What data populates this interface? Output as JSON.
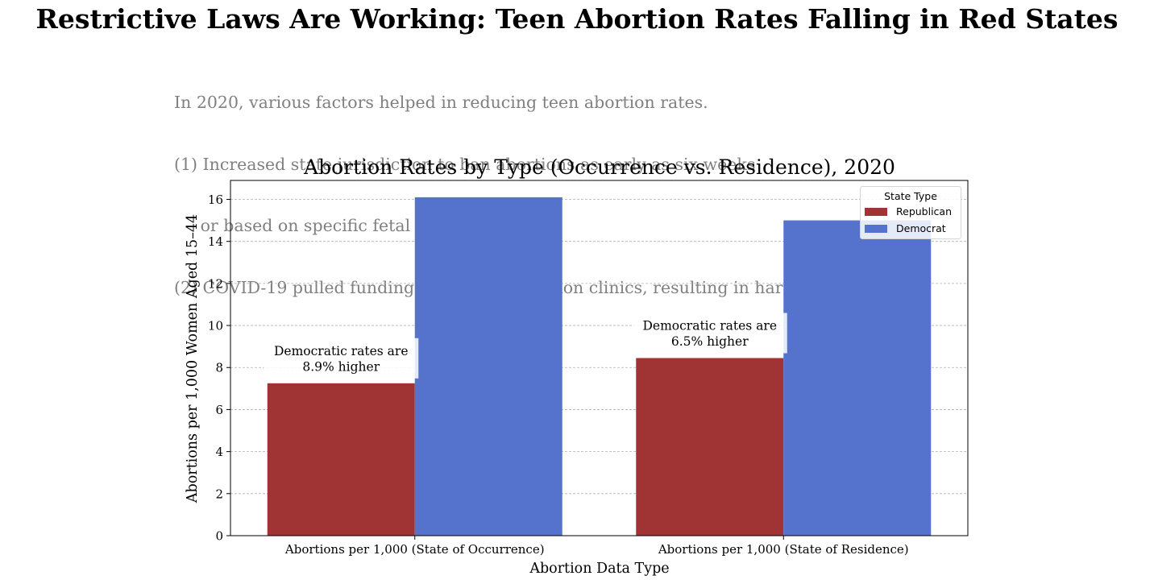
{
  "page": {
    "title": "Restrictive Laws Are Working: Teen Abortion Rates Falling in Red States",
    "subtitle_lines": [
      "In 2020, various factors helped in reducing teen abortion rates.",
      "(1) Increased state jurisdiction to ban abortions as early as six weeks",
      "     or based on specific fetal characteristics",
      "(2) COVID-19 pulled funding away from abortion clinics, resulting in harder accessability."
    ]
  },
  "chart_data": {
    "type": "bar",
    "title": "Abortion Rates by Type (Occurrence vs. Residence), 2020",
    "xlabel": "Abortion Data Type",
    "ylabel": "Abortions per 1,000 Women Aged 15–44",
    "categories": [
      "Abortions per 1,000 (State of Occurrence)",
      "Abortions per 1,000 (State of Residence)"
    ],
    "series": [
      {
        "name": "Republican",
        "values": [
          7.25,
          8.45
        ],
        "color": "#a03333"
      },
      {
        "name": "Democrat",
        "values": [
          16.1,
          15.0
        ],
        "color": "#5573cd"
      }
    ],
    "ylim": [
      0,
      16.9
    ],
    "yticks": [
      0,
      2,
      4,
      6,
      8,
      10,
      12,
      14,
      16
    ],
    "grid": "horizontal dashed",
    "legend": {
      "title": "State Type",
      "placement": "top-right"
    },
    "annotations": [
      {
        "category": 0,
        "lines": [
          "Democratic rates are",
          "8.9% higher"
        ]
      },
      {
        "category": 1,
        "lines": [
          "Democratic rates are",
          "6.5% higher"
        ]
      }
    ]
  }
}
